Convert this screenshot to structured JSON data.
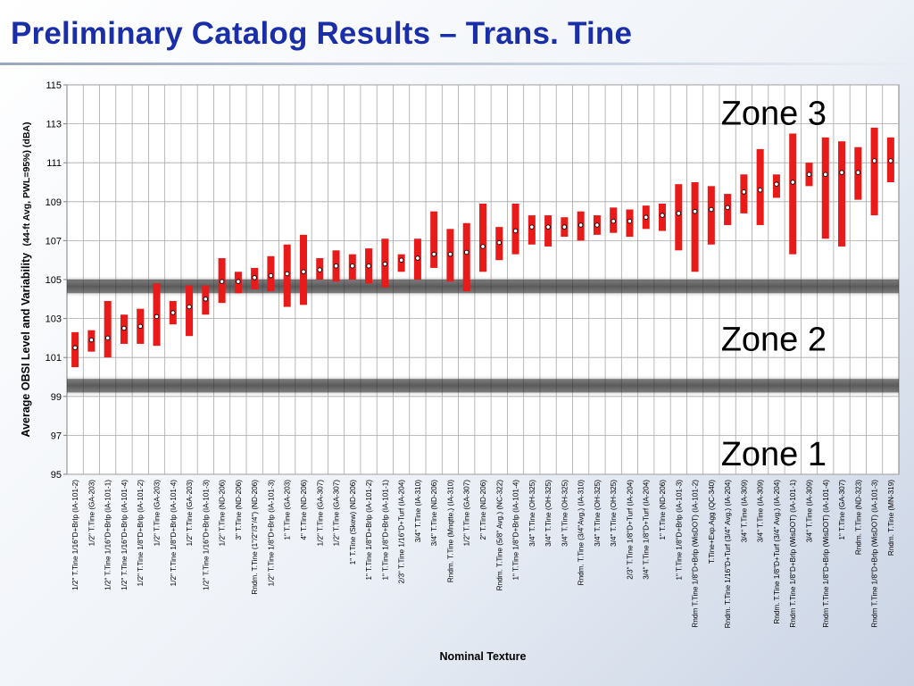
{
  "slide": {
    "title": "Preliminary Catalog Results – Trans. Tine"
  },
  "chart_data": {
    "type": "range-bar",
    "title": "Preliminary Catalog Results – Trans. Tine",
    "xlabel": "Nominal Texture",
    "ylabel_main": "Average OBSI Level and Variability",
    "ylabel_sub": "(44-ft Avg, PWL=95%) (dBA)",
    "ylim": [
      95,
      115
    ],
    "yticks": [
      "95",
      "97",
      "99",
      "101",
      "103",
      "105",
      "107",
      "109",
      "111",
      "113",
      "115"
    ],
    "grid": true,
    "bands": [
      {
        "low": 104.3,
        "high": 105.0,
        "color": "#2a2a2a"
      },
      {
        "low": 99.2,
        "high": 99.9,
        "color": "#2a2a2a"
      }
    ],
    "zones": [
      {
        "label": "Zone 3",
        "y": 113.6
      },
      {
        "label": "Zone 2",
        "y": 102.0
      },
      {
        "label": "Zone 1",
        "y": 96.1
      }
    ],
    "bar_color": "#e81a1a",
    "categories": [
      "1/2\" T.Tine 1/16\"D+Brlp (IA-101-2)",
      "1/2\" T.Tine (GA-203)",
      "1/2\" T.Tine 1/16\"D+Brlp (IA-101-1)",
      "1/2\" T.Tine 1/16\"D+Brlp (IA-101-4)",
      "1/2\" T.Tine 1/8\"D+Brlp (IA-101-2)",
      "1/2\" T.Tine (GA-203)",
      "1/2\" T.Tine 1/8\"D+Brlp (IA-101-4)",
      "1/2\" T.Tine (GA-203)",
      "1/2\" T.Tine 1/16\"D+Brlp (IA-101-3)",
      "1/2\" T.Tine (ND-206)",
      "3\" T.Tine (ND-206)",
      "Rndm. T.Tine (1\"/2\"/3\"/4\") (ND-206)",
      "1/2\" T.Tine 1/8\"D+Brlp (IA-101-3)",
      "1\" T.Tine (GA-203)",
      "4\" T.Tine (ND-206)",
      "1/2\" T.Tine (GA-307)",
      "1/2\" T.Tine (GA-307)",
      "1\" T.Tine (Skew) (ND-206)",
      "1\" T.Tine 1/8\"D+Brlp (IA-101-2)",
      "1\" T.Tine 1/8\"D+Brlp (IA-101-1)",
      "2/3\" T.Tine 1/16\"D+Turf (IA-204)",
      "3/4\" T.Tine (IA-310)",
      "3/4\" T.Tine (ND-206)",
      "Rndm. T.Tine (Mnqtte.) (IA-310)",
      "1/2\" T.Tine (GA-307)",
      "2\" T.Tine (ND-206)",
      "Rndm. T.Tine (5/8\" Avg.) (NC-322)",
      "1\" T.Tine 1/8\"D+Brlp (IA-101-4)",
      "3/4\" T.Tine (OH-325)",
      "3/4\" T.Tine (OH-325)",
      "3/4\" T.Tine (OH-325)",
      "Rndm. T.Tine (3/4\"Avg.) (IA-310)",
      "3/4\" T.Tine (OH-325)",
      "3/4\" T.Tine (OH-325)",
      "2/3\" T.Tine 1/8\"D+Turf (IA-204)",
      "3/4\" T.Tine 1/8\"D+Turf (IA-204)",
      "1\" T.Tine (ND-206)",
      "1\" T.Tine 1/8\"D+Brlp (IA-101-3)",
      "Rndm T.Tine 1/8\"D+Brlp (WisDOT) (IA-101-2)",
      "T.Tine+Exp.Agg (QC-340)",
      "Rndm. T.Tine 1/16\"D+Turf (3/4\" Avg.) (IA-204)",
      "3/4\" T.Tine (IA-309)",
      "3/4\" T.Tine (IA-309)",
      "Rndm. T.Tine 1/8\"D+Turf (3/4\" Avg.) (IA-204)",
      "Rndm T.Tine 1/8\"D+Brlp (WisDOT) (IA-101-1)",
      "3/4\" T.Tine (IA-309)",
      "Rndm T.Tine 1/8\"D+Brlp (WisDOT) (IA-101-4)",
      "1\" T.Tine (GA-307)",
      "Rndm. T.Tine (ND-323)",
      "Rndm T.Tine 1/8\"D+Brlp (WisDOT) (IA-101-3)",
      "Rndm. T.Tine (MN-319)"
    ],
    "series": [
      {
        "name": "avg",
        "values": [
          101.5,
          101.9,
          102.0,
          102.5,
          102.6,
          103.1,
          103.3,
          103.6,
          104.0,
          104.9,
          104.9,
          105.1,
          105.2,
          105.3,
          105.4,
          105.5,
          105.7,
          105.7,
          105.7,
          105.8,
          106.0,
          106.1,
          106.3,
          106.3,
          106.4,
          106.7,
          106.9,
          107.5,
          107.7,
          107.7,
          107.7,
          107.8,
          107.8,
          108.0,
          108.0,
          108.2,
          108.3,
          108.4,
          108.5,
          108.6,
          108.7,
          109.5,
          109.6,
          109.9,
          110.0,
          110.4,
          110.4,
          110.5,
          110.5,
          111.1,
          111.1
        ]
      },
      {
        "name": "low",
        "values": [
          100.5,
          101.3,
          101.0,
          101.7,
          101.7,
          101.6,
          102.7,
          102.1,
          103.2,
          103.8,
          104.3,
          104.5,
          104.4,
          103.6,
          103.7,
          105.0,
          104.9,
          105.0,
          104.8,
          104.6,
          105.4,
          105.0,
          105.6,
          104.9,
          104.4,
          105.4,
          106.0,
          106.3,
          106.8,
          106.7,
          107.2,
          107.0,
          107.3,
          107.4,
          107.2,
          107.6,
          107.5,
          106.5,
          105.4,
          106.8,
          107.8,
          108.4,
          107.8,
          109.2,
          106.3,
          109.8,
          107.1,
          106.7,
          109.1,
          108.3,
          110.0
        ]
      },
      {
        "name": "high",
        "values": [
          102.3,
          102.4,
          103.9,
          103.2,
          103.5,
          104.8,
          103.9,
          104.7,
          104.7,
          106.1,
          105.4,
          105.6,
          106.2,
          106.8,
          107.3,
          106.1,
          106.5,
          106.3,
          106.6,
          107.1,
          106.3,
          107.1,
          108.5,
          107.6,
          107.9,
          108.9,
          107.7,
          108.9,
          108.3,
          108.3,
          108.2,
          108.5,
          108.3,
          108.7,
          108.6,
          108.8,
          108.9,
          109.9,
          110.0,
          109.8,
          109.4,
          110.4,
          111.7,
          110.4,
          112.5,
          111.0,
          112.3,
          112.1,
          111.8,
          112.8,
          112.3
        ]
      }
    ]
  }
}
